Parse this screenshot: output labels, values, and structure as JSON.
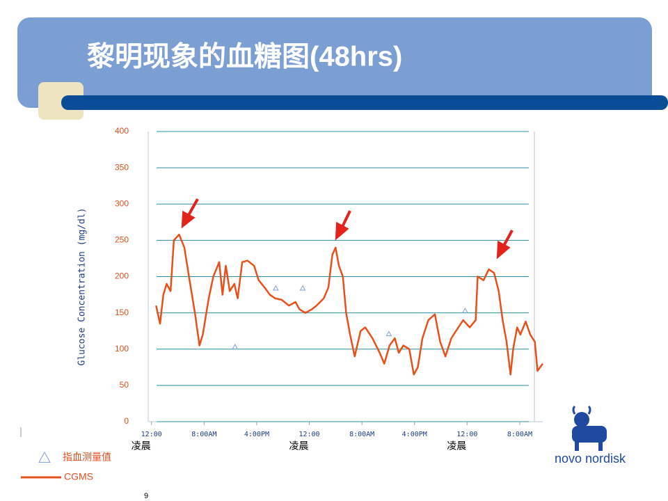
{
  "header": {
    "title": "黎明现象的血糖图(48hrs)"
  },
  "chart_data": {
    "type": "line",
    "ylabel": "Glucose Concentration (mg/dl)",
    "xlim": [
      -0.5,
      59.5
    ],
    "ylim": [
      0,
      400
    ],
    "yticks": [
      0,
      50,
      100,
      150,
      200,
      250,
      300,
      350,
      400
    ],
    "xticks": [
      {
        "value": 0,
        "label": "12:00"
      },
      {
        "value": 8,
        "label": "8:00AM"
      },
      {
        "value": 16,
        "label": "4:00PM"
      },
      {
        "value": 24,
        "label": "12:00"
      },
      {
        "value": 32,
        "label": "8:00AM"
      },
      {
        "value": 40,
        "label": "4:00PM"
      },
      {
        "value": 48,
        "label": "12:00"
      },
      {
        "value": 56,
        "label": "8:00AM"
      }
    ],
    "x_annotations": [
      {
        "x": 0,
        "text": "凌晨"
      },
      {
        "x": 24,
        "text": "凌晨"
      },
      {
        "x": 48,
        "text": "凌晨"
      }
    ],
    "grid": true,
    "series": [
      {
        "name": "指血测量值",
        "color": "#7f9fd5",
        "marker": "triangle",
        "x": [
          12.7,
          18.9,
          23,
          36.1,
          47.7
        ],
        "values": [
          103,
          184,
          184,
          121,
          153
        ]
      },
      {
        "name": "CGMS",
        "color": "#e8501a",
        "marker": "line",
        "x": [
          0.7,
          1.3,
          1.8,
          2.3,
          2.9,
          3.4,
          4.2,
          5.0,
          5.7,
          6.6,
          7.3,
          7.8,
          8.7,
          9.4,
          10.3,
          10.8,
          11.3,
          11.9,
          12.6,
          13.1,
          13.8,
          14.6,
          15.6,
          16.3,
          17.2,
          18.0,
          18.8,
          19.8,
          20.9,
          21.9,
          22.5,
          23.4,
          24.4,
          25.1,
          26.2,
          26.9,
          27.5,
          28.0,
          28.5,
          29.1,
          29.6,
          30.2,
          30.9,
          31.8,
          32.5,
          33.6,
          34.7,
          35.4,
          36.2,
          37.0,
          37.6,
          38.3,
          39.2,
          39.9,
          40.5,
          41.2,
          42.1,
          43.1,
          43.9,
          44.7,
          45.6,
          46.3,
          47.4,
          48.4,
          49.3,
          49.6,
          50.5,
          51.3,
          52.1,
          52.8,
          53.4,
          54.0,
          54.6,
          55.0,
          55.6,
          56.1,
          56.9,
          57.6,
          58.3,
          58.7,
          59.5
        ],
        "values": [
          160,
          135,
          175,
          190,
          180,
          250,
          258,
          240,
          200,
          150,
          105,
          120,
          170,
          200,
          220,
          175,
          215,
          180,
          190,
          170,
          220,
          222,
          215,
          195,
          185,
          175,
          170,
          168,
          160,
          165,
          155,
          150,
          155,
          160,
          170,
          185,
          230,
          240,
          215,
          200,
          150,
          120,
          90,
          125,
          130,
          115,
          95,
          80,
          105,
          115,
          95,
          105,
          100,
          65,
          75,
          115,
          140,
          148,
          110,
          90,
          115,
          125,
          140,
          130,
          140,
          200,
          195,
          210,
          205,
          180,
          140,
          110,
          65,
          100,
          130,
          120,
          138,
          120,
          110,
          70,
          80
        ]
      }
    ]
  },
  "footer": {
    "page": "9",
    "logo": "novo nordisk"
  }
}
